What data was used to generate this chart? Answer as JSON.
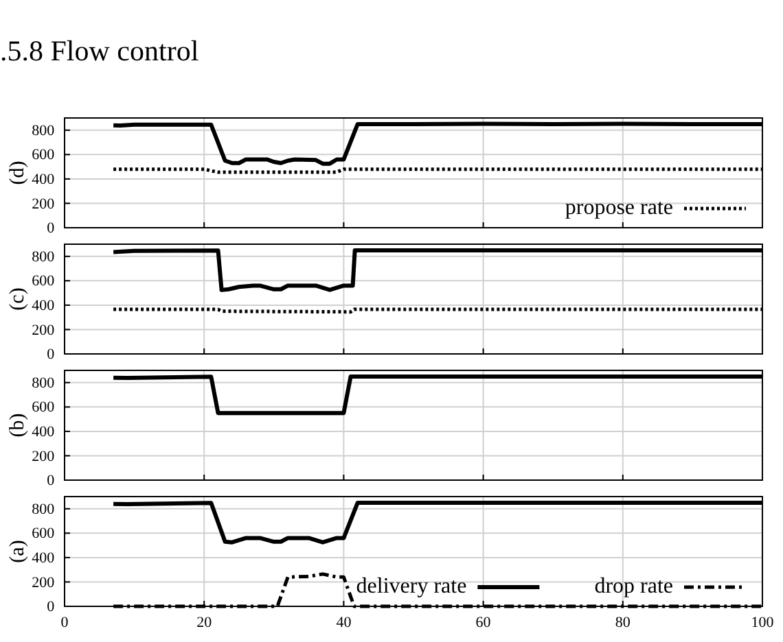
{
  "chart_data": [
    {
      "type": "line",
      "title": ".5.8   Flow control",
      "ylabel": "(d)",
      "xlim": [
        0,
        100
      ],
      "ylim": [
        0,
        900
      ],
      "xticks": [
        0,
        20,
        40,
        60,
        80,
        100
      ],
      "yticks": [
        0,
        200,
        400,
        600,
        800
      ],
      "tick_labels": "y",
      "grid": true,
      "legend": "bottom right",
      "series": [
        {
          "color": "#000000",
          "line_style": "solid",
          "x": [
            7,
            8,
            10,
            15,
            21,
            23,
            24,
            25,
            26,
            29,
            30,
            31,
            32,
            33,
            36,
            37,
            38,
            39,
            40,
            42,
            50,
            60,
            70,
            80,
            90,
            100
          ],
          "values": [
            840,
            838,
            845,
            845,
            845,
            550,
            530,
            530,
            560,
            560,
            540,
            530,
            550,
            560,
            555,
            525,
            525,
            560,
            560,
            850,
            850,
            852,
            850,
            852,
            850,
            850
          ]
        },
        {
          "name": "propose rate",
          "color": "#000000",
          "line_style": "dotted",
          "x": [
            7,
            20,
            22,
            39,
            40,
            100
          ],
          "values": [
            480,
            480,
            455,
            455,
            480,
            480
          ]
        }
      ]
    },
    {
      "type": "line",
      "ylabel": "(c)",
      "xlim": [
        0,
        100
      ],
      "ylim": [
        0,
        900
      ],
      "xticks": [
        0,
        20,
        40,
        60,
        80,
        100
      ],
      "yticks": [
        0,
        200,
        400,
        600,
        800
      ],
      "tick_labels": "y",
      "grid": true,
      "series": [
        {
          "color": "#000000",
          "line_style": "solid",
          "x": [
            7,
            10,
            22,
            22.5,
            23.5,
            25,
            27,
            28,
            30,
            31,
            32,
            36,
            38,
            40,
            41.3,
            41.6,
            60,
            80,
            100
          ],
          "values": [
            835,
            845,
            848,
            525,
            530,
            550,
            560,
            560,
            530,
            530,
            560,
            560,
            525,
            560,
            560,
            850,
            850,
            850,
            850
          ]
        },
        {
          "color": "#000000",
          "line_style": "dotted",
          "x": [
            7,
            22,
            22.5,
            41,
            41.5,
            100
          ],
          "values": [
            365,
            365,
            350,
            345,
            365,
            365
          ]
        }
      ]
    },
    {
      "type": "line",
      "ylabel": "(b)",
      "xlim": [
        0,
        100
      ],
      "ylim": [
        0,
        900
      ],
      "xticks": [
        0,
        20,
        40,
        60,
        80,
        100
      ],
      "yticks": [
        0,
        200,
        400,
        600,
        800
      ],
      "tick_labels": "y",
      "grid": true,
      "series": [
        {
          "color": "#000000",
          "line_style": "solid",
          "x": [
            7,
            9,
            21,
            22,
            40,
            41,
            60,
            80,
            100
          ],
          "values": [
            840,
            838,
            848,
            550,
            550,
            850,
            850,
            850,
            850
          ]
        }
      ]
    },
    {
      "type": "line",
      "ylabel": "(a)",
      "xlim": [
        0,
        100
      ],
      "ylim": [
        0,
        900
      ],
      "xticks": [
        0,
        20,
        40,
        60,
        80,
        100
      ],
      "yticks": [
        0,
        200,
        400,
        600,
        800
      ],
      "grid": true,
      "legend": "bottom right",
      "series": [
        {
          "name": "delivery rate",
          "color": "#000000",
          "line_style": "solid",
          "x": [
            7,
            9,
            21,
            23,
            24,
            26,
            28,
            30,
            31,
            32,
            35,
            37,
            39,
            40,
            42,
            60,
            80,
            100
          ],
          "values": [
            840,
            838,
            848,
            530,
            525,
            560,
            560,
            530,
            530,
            560,
            560,
            525,
            560,
            560,
            850,
            850,
            850,
            850
          ]
        },
        {
          "name": "drop rate",
          "color": "#000000",
          "line_style": "dashed",
          "x": [
            7,
            30.5,
            32,
            35,
            37,
            39,
            40,
            41.5,
            100
          ],
          "values": [
            0,
            0,
            240,
            245,
            265,
            240,
            240,
            0,
            0
          ]
        }
      ]
    }
  ]
}
